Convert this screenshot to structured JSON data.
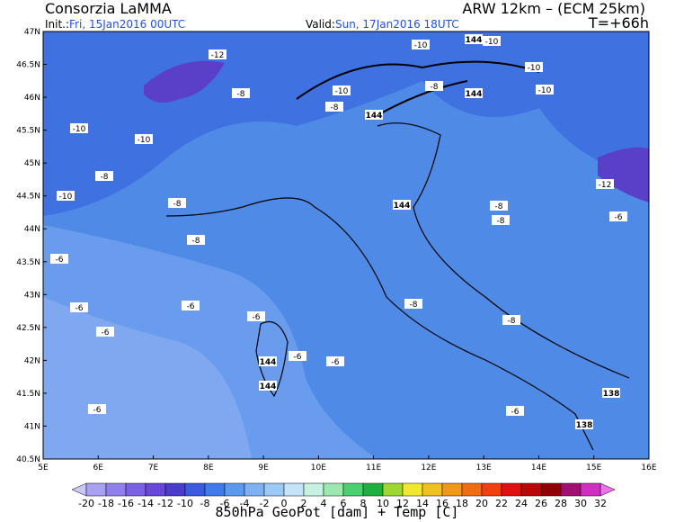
{
  "header": {
    "title": "Consorzia LaMMA",
    "model": "ARW 12km – (ECM 25km)",
    "init_label": "Init.:",
    "init": "Fri, 15Jan2016 00UTC",
    "valid_label": "Valid:",
    "valid": "Sun, 17Jan2016 18UTC",
    "lead": "T=+66h"
  },
  "lat_labels": [
    "47N",
    "46.5N",
    "46N",
    "45.5N",
    "45N",
    "44.5N",
    "44N",
    "43.5N",
    "43N",
    "42.5N",
    "42N",
    "41.5N",
    "41N",
    "40.5N"
  ],
  "lon_labels": [
    "5E",
    "6E",
    "7E",
    "8E",
    "9E",
    "10E",
    "11E",
    "12E",
    "13E",
    "14E",
    "15E",
    "16E"
  ],
  "temp_labels": [
    "-12",
    "-10",
    "-10",
    "-10",
    "-10",
    "-8",
    "-10",
    "-8",
    "-8",
    "-10",
    "-10",
    "-8",
    "-10",
    "-8",
    "-12",
    "-8",
    "-8",
    "-6",
    "-8",
    "-6",
    "-6",
    "-6",
    "-8",
    "-6",
    "-6",
    "-8",
    "-6",
    "-6",
    "-6",
    "-6"
  ],
  "geopot_labels": [
    "144",
    "144",
    "144",
    "144",
    "144",
    "144",
    "138",
    "138"
  ],
  "colorbar": {
    "labels": [
      -20,
      -18,
      -16,
      -14,
      -12,
      -10,
      -8,
      -6,
      -4,
      -2,
      0,
      2,
      4,
      6,
      8,
      10,
      12,
      14,
      16,
      18,
      20,
      22,
      24,
      26,
      28,
      30,
      32
    ],
    "under_color": "#c8c8f8",
    "over_color": "#f070f0",
    "colors": [
      "#a8a0f0",
      "#9080ec",
      "#7a60e4",
      "#6848d8",
      "#4a3cc8",
      "#3a5ae0",
      "#3f7ae8",
      "#5c98ee",
      "#7cb2f2",
      "#9ccaf6",
      "#c4e4fa",
      "#c8f0e0",
      "#9ce8b0",
      "#4cd070",
      "#20b040",
      "#9cd830",
      "#f0e830",
      "#f0c020",
      "#f09818",
      "#f06c10",
      "#f04010",
      "#e01010",
      "#b80808",
      "#900000",
      "#a01070",
      "#d030c0"
    ]
  },
  "footer": "850hPa GeoPot [dam] + Temp [C]"
}
